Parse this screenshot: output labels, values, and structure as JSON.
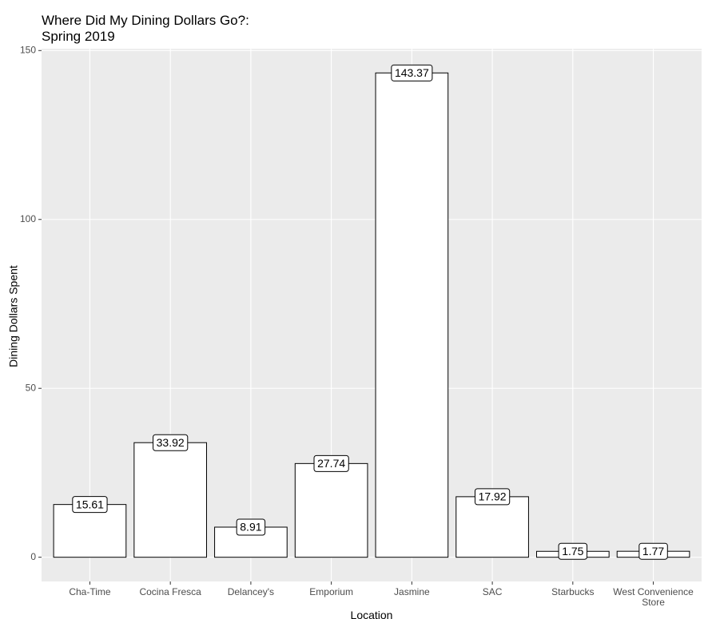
{
  "chart_data": {
    "type": "bar",
    "title": "Where Did My Dining Dollars Go?:\nSpring 2019",
    "x_label": "Location",
    "y_label": "Dining Dollars Spent",
    "categories": [
      "Cha-Time",
      "Cocina Fresca",
      "Delancey's",
      "Emporium",
      "Jasmine",
      "SAC",
      "Starbucks",
      "West Convenience\nStore"
    ],
    "values": [
      15.61,
      33.92,
      8.91,
      27.74,
      143.37,
      17.92,
      1.75,
      1.77
    ],
    "color": "#ffffff",
    "edge_color": "#000000",
    "ylim": [
      -7.17,
      150.54
    ],
    "yticks": [
      0,
      50,
      100,
      150
    ],
    "grid": true
  }
}
